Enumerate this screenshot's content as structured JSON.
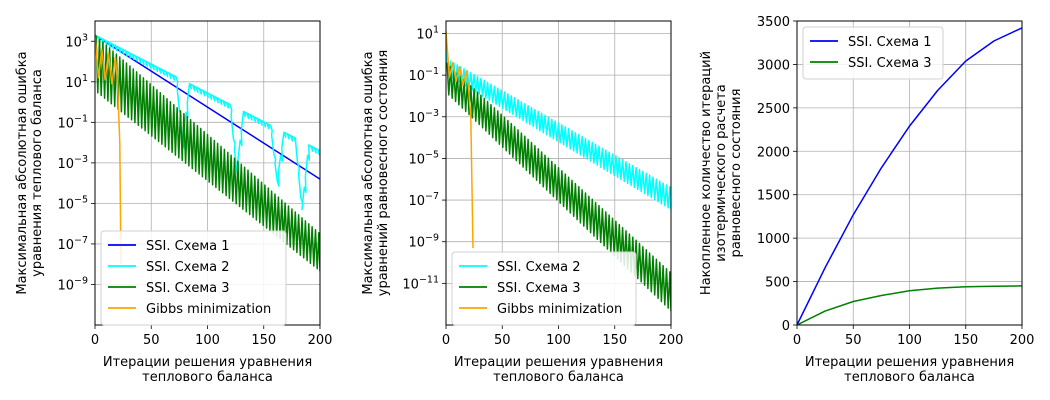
{
  "chart_data": [
    {
      "type": "line",
      "ylabel": [
        "Максимальная абсолютная ошибка",
        "уравнения теплового баланса"
      ],
      "xlabel": [
        "Итерации решения уравнения",
        "теплового баланса"
      ],
      "x_ticks": [
        "0",
        "50",
        "100",
        "150",
        "200"
      ],
      "xlim": [
        0,
        200
      ],
      "y_scale": "log",
      "ylim_log10": [
        -11,
        4
      ],
      "y_ticks": [
        {
          "exp": 3,
          "label": "10"
        },
        {
          "exp": 1,
          "label": "10"
        },
        {
          "exp": -1,
          "label": "10"
        },
        {
          "exp": -3,
          "label": "10"
        },
        {
          "exp": -5,
          "label": "10"
        },
        {
          "exp": -7,
          "label": "10"
        },
        {
          "exp": -9,
          "label": "10"
        }
      ],
      "y_tick_exps": [
        "3",
        "1",
        "−1",
        "−3",
        "−5",
        "−7",
        "−9"
      ],
      "grid": true,
      "legend_position": "lower-left",
      "series": [
        {
          "name": "SSI. Схема 1",
          "color": "#0000ff",
          "kind": "steady",
          "x": [
            0,
            200
          ],
          "log10_y": [
            3.3,
            -3.8
          ]
        },
        {
          "name": "SSI. Схема 2",
          "color": "#00ffff",
          "kind": "oscillating",
          "x": [
            0,
            200
          ],
          "log10_y_upper": [
            3.3,
            -2.4
          ],
          "cusp_x": [
            78,
            126,
            162,
            184
          ],
          "cusp_log10_y": [
            -2.0,
            -3.4,
            -3.9,
            -5.3
          ]
        },
        {
          "name": "SSI. Схема 3",
          "color": "#008000",
          "kind": "oscillating",
          "x": [
            0,
            200
          ],
          "log10_y_upper": [
            3.3,
            -6.5
          ],
          "log10_y_lower": [
            0.5,
            -8.4
          ],
          "period": 6
        },
        {
          "name": "Gibbs minimization",
          "color": "#ffa500",
          "kind": "drop",
          "x": [
            0,
            3,
            6,
            9,
            12,
            15,
            18,
            20,
            22,
            23
          ],
          "log10_y": [
            3.3,
            1.2,
            2.6,
            1.1,
            2.4,
            0.9,
            2.2,
            1.0,
            -2.0,
            -8.0
          ]
        }
      ]
    },
    {
      "type": "line",
      "ylabel": [
        "Максимальная абсолютная ошибка",
        "уравнений равновесного состояния"
      ],
      "xlabel": [
        "Итерации решения уравнения",
        "теплового баланса"
      ],
      "x_ticks": [
        "0",
        "50",
        "100",
        "150",
        "200"
      ],
      "xlim": [
        0,
        200
      ],
      "y_scale": "log",
      "ylim_log10": [
        -13,
        1.6
      ],
      "y_ticks": [
        {
          "exp": 1,
          "label": "10"
        },
        {
          "exp": -1,
          "label": "10"
        },
        {
          "exp": -3,
          "label": "10"
        },
        {
          "exp": -5,
          "label": "10"
        },
        {
          "exp": -7,
          "label": "10"
        },
        {
          "exp": -9,
          "label": "10"
        },
        {
          "exp": -11,
          "label": "10"
        }
      ],
      "y_tick_exps": [
        "1",
        "−1",
        "−3",
        "−5",
        "−7",
        "−9",
        "−11"
      ],
      "grid": true,
      "legend_position": "lower-left",
      "series": [
        {
          "name": "SSI. Схема 2",
          "color": "#00ffff",
          "kind": "oscillating",
          "x": [
            0,
            200
          ],
          "log10_y_upper": [
            -0.2,
            -6.4
          ],
          "log10_y_lower": [
            -1.0,
            -7.5
          ],
          "spike_start": 1.1
        },
        {
          "name": "SSI. Схема 3",
          "color": "#008000",
          "kind": "oscillating",
          "x": [
            0,
            200
          ],
          "log10_y_upper": [
            -0.4,
            -10.5
          ],
          "log10_y_lower": [
            -1.9,
            -12.4
          ],
          "period": 6
        },
        {
          "name": "Gibbs minimization",
          "color": "#ffa500",
          "kind": "drop",
          "x": [
            0,
            3,
            6,
            9,
            12,
            15,
            18,
            20,
            22,
            24
          ],
          "log10_y": [
            1.1,
            -1.1,
            -0.4,
            -1.3,
            -0.6,
            -1.5,
            -0.8,
            -1.6,
            -3.0,
            -9.3
          ]
        }
      ]
    },
    {
      "type": "line",
      "ylabel": [
        "Накопленное количество итераций",
        "изотермического расчета",
        "равновесного состояния"
      ],
      "xlabel": [
        "Итерации решения уравнения",
        "теплового баланса"
      ],
      "x_ticks": [
        "0",
        "50",
        "100",
        "150",
        "200"
      ],
      "xlim": [
        0,
        200
      ],
      "ylim": [
        0,
        3500
      ],
      "y_ticks": [
        "0",
        "500",
        "1000",
        "1500",
        "2000",
        "2500",
        "3000",
        "3500"
      ],
      "grid": true,
      "legend_position": "upper-left",
      "series": [
        {
          "name": "SSI. Схема 1",
          "color": "#0000ff",
          "x": [
            0,
            25,
            50,
            75,
            100,
            125,
            150,
            175,
            200
          ],
          "y": [
            0,
            660,
            1270,
            1810,
            2290,
            2700,
            3040,
            3270,
            3420
          ]
        },
        {
          "name": "SSI. Схема 3",
          "color": "#008000",
          "x": [
            0,
            25,
            50,
            75,
            100,
            125,
            150,
            175,
            200
          ],
          "y": [
            0,
            160,
            270,
            340,
            395,
            425,
            440,
            445,
            450
          ]
        }
      ]
    }
  ]
}
